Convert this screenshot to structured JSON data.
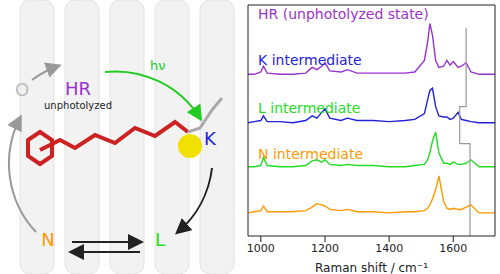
{
  "chart_data": {
    "type": "line",
    "xlabel": "Raman shift / cm⁻¹",
    "x": [
      960,
      980,
      1000,
      1008,
      1020,
      1060,
      1100,
      1140,
      1160,
      1175,
      1190,
      1200,
      1215,
      1250,
      1270,
      1300,
      1350,
      1400,
      1450,
      1480,
      1510,
      1520,
      1527,
      1535,
      1545,
      1555,
      1570,
      1580,
      1590,
      1600,
      1615,
      1625,
      1640,
      1655,
      1680,
      1730
    ],
    "xlim": [
      960,
      1730
    ],
    "xticks": [
      1000,
      1200,
      1400,
      1600
    ],
    "ylim": [
      0,
      10
    ],
    "tick_labels": "x",
    "series": [
      {
        "name": "HR (unphotolyzed state)",
        "color": "#9933cc",
        "values": [
          7.0,
          7.0,
          7.1,
          7.35,
          7.05,
          7.0,
          7.0,
          7.05,
          7.3,
          7.2,
          7.35,
          7.5,
          7.15,
          7.1,
          7.2,
          7.05,
          7.05,
          7.05,
          7.05,
          7.1,
          7.6,
          8.4,
          9.2,
          8.7,
          7.6,
          7.3,
          7.35,
          7.6,
          7.4,
          7.55,
          7.3,
          7.35,
          7.5,
          7.1,
          7.0,
          7.0
        ]
      },
      {
        "name": "K intermediate",
        "color": "#2222dd",
        "values": [
          4.9,
          4.95,
          5.0,
          5.2,
          4.95,
          4.95,
          4.9,
          5.0,
          5.2,
          5.1,
          5.35,
          5.5,
          5.1,
          5.0,
          5.1,
          5.0,
          5.0,
          4.95,
          5.0,
          5.05,
          5.3,
          5.9,
          6.3,
          6.4,
          5.6,
          5.2,
          5.15,
          5.15,
          5.05,
          5.1,
          5.35,
          5.05,
          5.0,
          4.95,
          4.9,
          4.9
        ]
      },
      {
        "name": "L intermediate",
        "color": "#22dd22",
        "values": [
          3.0,
          3.0,
          3.05,
          3.4,
          3.05,
          3.0,
          3.0,
          3.05,
          3.25,
          3.3,
          3.2,
          3.3,
          3.1,
          3.05,
          3.1,
          3.05,
          3.05,
          3.0,
          3.0,
          3.05,
          3.1,
          3.3,
          3.6,
          4.1,
          4.5,
          3.6,
          3.15,
          3.15,
          3.1,
          3.2,
          3.1,
          3.1,
          3.15,
          3.3,
          3.0,
          3.0
        ]
      },
      {
        "name": "N intermediate",
        "color": "#ff9900",
        "values": [
          1.0,
          1.05,
          1.1,
          1.3,
          1.05,
          1.05,
          1.05,
          1.1,
          1.25,
          1.4,
          1.35,
          1.3,
          1.15,
          1.1,
          1.15,
          1.05,
          1.05,
          1.0,
          1.05,
          1.05,
          1.1,
          1.2,
          1.35,
          1.6,
          2.0,
          2.6,
          1.5,
          1.2,
          1.15,
          1.2,
          1.15,
          1.15,
          1.25,
          1.35,
          1.0,
          1.0
        ]
      }
    ],
    "guide": {
      "color": "#999999",
      "x": [
        1640,
        1640,
        1620,
        1620,
        1652,
        1652
      ],
      "y": [
        9.0,
        5.6,
        5.6,
        4.0,
        4.0,
        0
      ]
    }
  },
  "diagram": {
    "excitation": "hν",
    "nodes": [
      {
        "label": "HR",
        "sublabel": "unphotolyzed",
        "color": "#9933cc"
      },
      {
        "label": "K",
        "color": "#2222dd"
      },
      {
        "label": "L",
        "color": "#22dd22"
      },
      {
        "label": "N",
        "color": "#ff9900"
      },
      {
        "label": "O",
        "color": "#bbbbbb"
      }
    ]
  }
}
